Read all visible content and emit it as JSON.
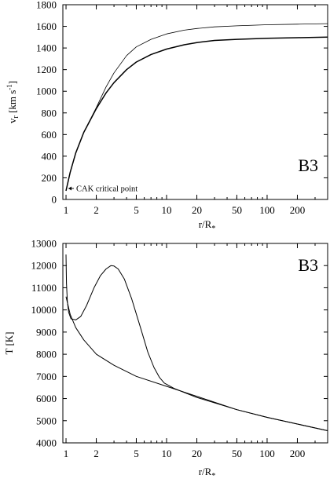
{
  "chart_data": [
    {
      "type": "line",
      "panel_tag": "B3",
      "xlabel": "r/R",
      "xlabel_sub": "*",
      "ylabel": "v",
      "ylabel_sub": "r",
      "ylabel_unit": " [km s",
      "ylabel_unit_sup": "-1",
      "ylabel_unit_end": "]",
      "xscale": "log",
      "xlim": [
        0.93,
        400
      ],
      "ylim": [
        0,
        1800
      ],
      "xticks": [
        1,
        2,
        5,
        10,
        20,
        50,
        100,
        200
      ],
      "yticks": [
        0,
        200,
        400,
        600,
        800,
        1000,
        1200,
        1400,
        1600,
        1800
      ],
      "grid": false,
      "annotations": [
        {
          "text": "CAK critical point",
          "x": 1.0,
          "y": 90
        }
      ],
      "series": [
        {
          "style": "thin",
          "x": [
            1.0,
            1.1,
            1.25,
            1.5,
            2.0,
            2.5,
            3,
            4,
            5,
            7,
            10,
            15,
            20,
            30,
            50,
            100,
            200,
            400
          ],
          "y": [
            80,
            250,
            430,
            620,
            850,
            1040,
            1170,
            1330,
            1410,
            1480,
            1530,
            1565,
            1580,
            1595,
            1605,
            1615,
            1620,
            1625
          ]
        },
        {
          "style": "thick",
          "x": [
            1.0,
            1.1,
            1.25,
            1.5,
            2.0,
            2.5,
            3,
            4,
            5,
            7,
            10,
            15,
            20,
            30,
            50,
            100,
            200,
            400
          ],
          "y": [
            80,
            250,
            430,
            620,
            840,
            985,
            1080,
            1200,
            1270,
            1340,
            1390,
            1430,
            1450,
            1470,
            1480,
            1490,
            1495,
            1500
          ]
        }
      ]
    },
    {
      "type": "line",
      "panel_tag": "B3",
      "xlabel": "r/R",
      "xlabel_sub": "*",
      "ylabel": "T [K]",
      "xscale": "log",
      "xlim": [
        0.93,
        400
      ],
      "ylim": [
        4000,
        13000
      ],
      "xticks": [
        1,
        2,
        5,
        10,
        20,
        50,
        100,
        200
      ],
      "yticks": [
        4000,
        5000,
        6000,
        7000,
        8000,
        9000,
        10000,
        11000,
        12000,
        13000
      ],
      "grid": false,
      "series": [
        {
          "style": "bump",
          "x": [
            1.0,
            1.01,
            1.03,
            1.06,
            1.12,
            1.25,
            1.4,
            1.6,
            1.9,
            2.2,
            2.5,
            2.8,
            3.0,
            3.3,
            3.8,
            4.5,
            5.5,
            6.5,
            7.5,
            8.5,
            9.5,
            12,
            20,
            50,
            100,
            200,
            400
          ],
          "y": [
            12500,
            11200,
            10400,
            9900,
            9600,
            9550,
            9700,
            10200,
            11000,
            11550,
            11850,
            12000,
            11980,
            11850,
            11400,
            10500,
            9200,
            8100,
            7400,
            6950,
            6700,
            6450,
            6050,
            5500,
            5150,
            4850,
            4550
          ]
        },
        {
          "style": "smooth",
          "x": [
            1.0,
            1.1,
            1.25,
            1.5,
            2.0,
            3.0,
            5.0,
            10,
            20,
            50,
            100,
            200,
            400
          ],
          "y": [
            10600,
            9800,
            9200,
            8650,
            8000,
            7500,
            7000,
            6550,
            6100,
            5500,
            5150,
            4850,
            4550
          ]
        }
      ]
    }
  ]
}
